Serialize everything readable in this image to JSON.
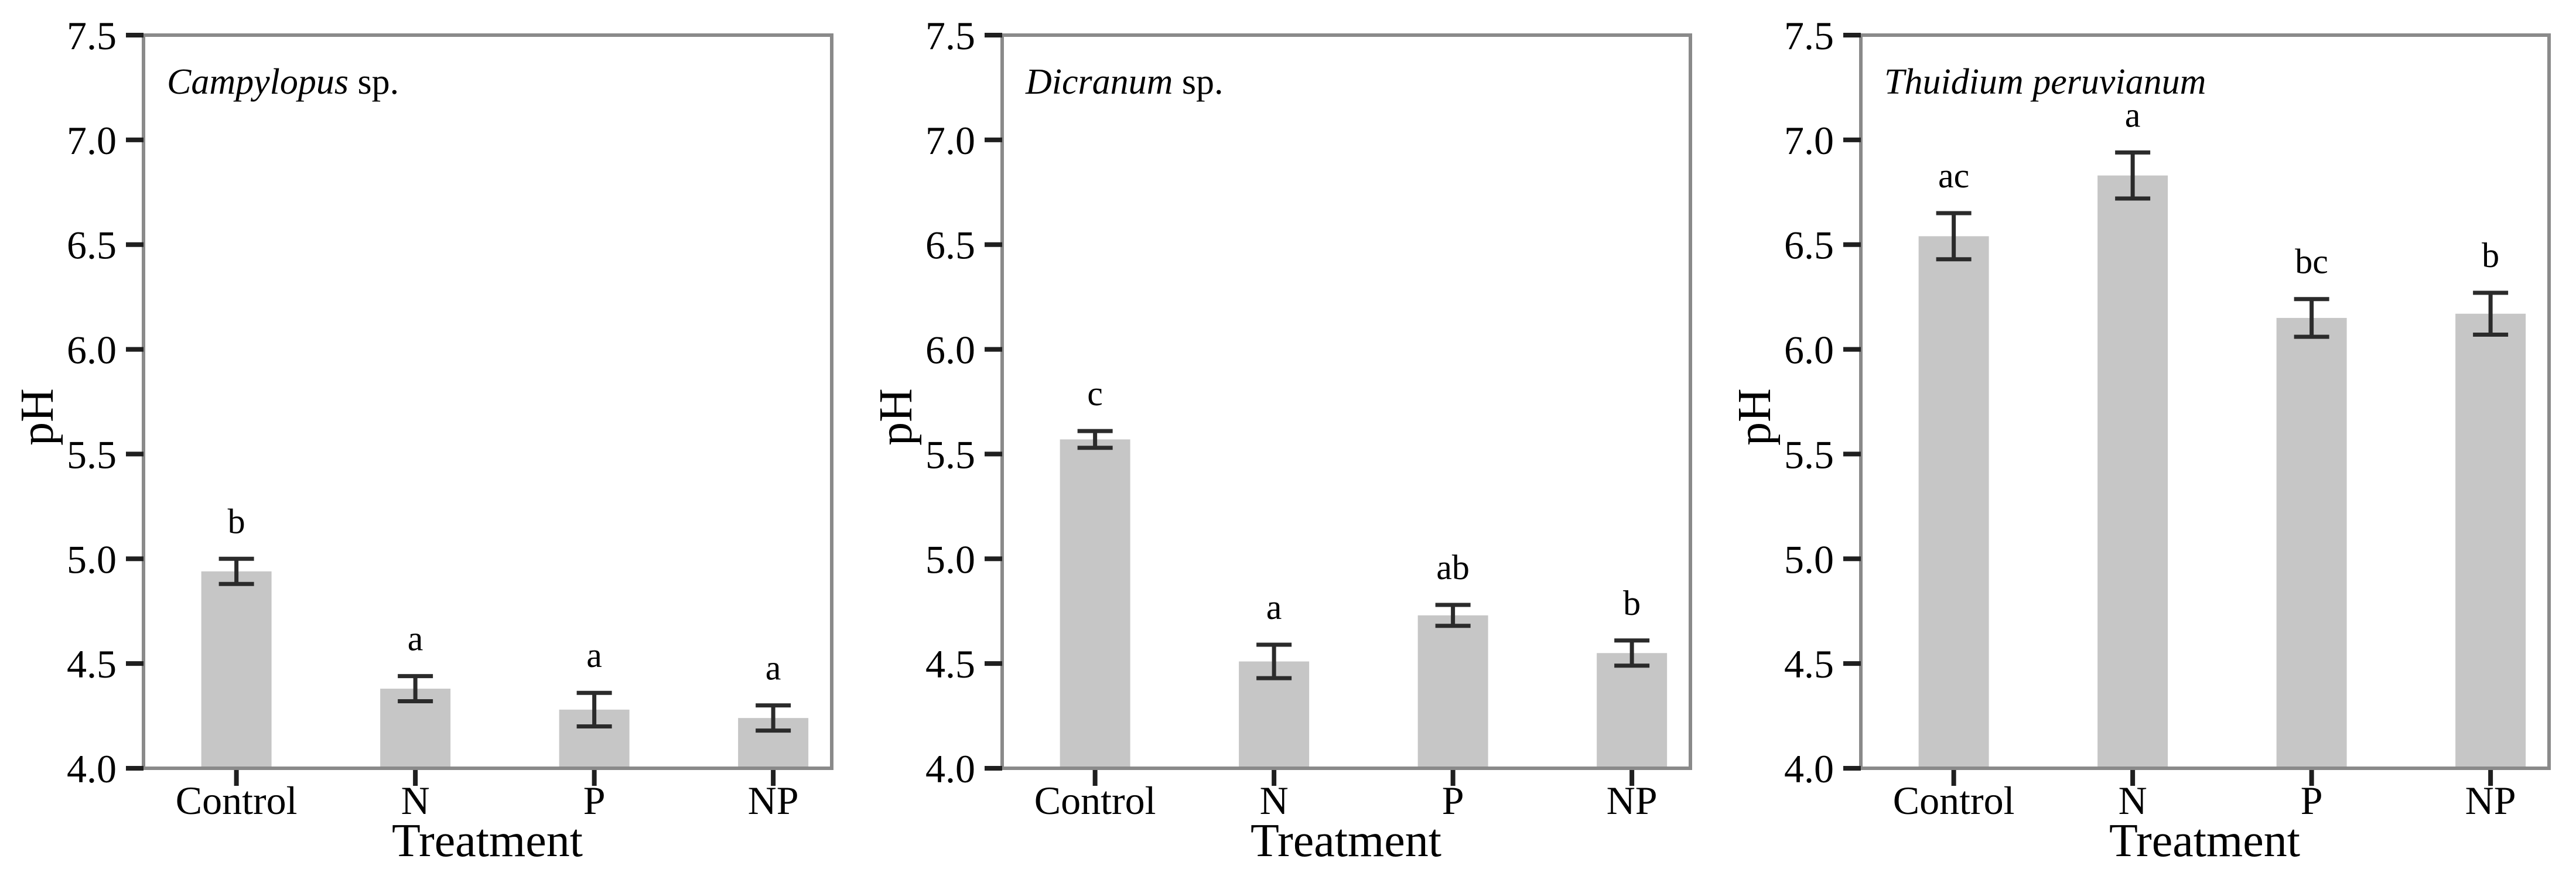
{
  "figure": {
    "background": "#ffffff",
    "description": "Three-panel bar chart of substrate pH under nutrient addition treatments for three moss species, with error bars and significance letters"
  },
  "colors": {
    "bar_fill": "#c6c6c6",
    "axis_line": "#8a8a8a",
    "tick_color": "#1f1f1f",
    "error_bar_color": "#2b2b2b",
    "text_color": "#000000"
  },
  "axes": {
    "y_label": "pH",
    "x_label": "Treatment",
    "y_ticks": [
      "7.5",
      "7.0",
      "6.5",
      "6.0",
      "5.5",
      "5.0",
      "4.5",
      "4.0"
    ],
    "y_range": [
      4.0,
      7.5
    ],
    "categories": [
      "Control",
      "N",
      "P",
      "NP"
    ],
    "grid": false
  },
  "chart_data": [
    {
      "type": "bar",
      "panel": "left",
      "title": "Campylopus sp.",
      "title_parts": [
        {
          "text": "Campylopus",
          "italic": true
        },
        {
          "text": " sp.",
          "italic": false
        }
      ],
      "xlabel": "Treatment",
      "ylabel": "pH",
      "ylim": [
        4.0,
        7.5
      ],
      "categories": [
        "Control",
        "N",
        "P",
        "NP"
      ],
      "values": [
        4.94,
        4.38,
        4.28,
        4.24
      ],
      "errors": [
        0.06,
        0.06,
        0.08,
        0.06
      ],
      "sig_letters": [
        "b",
        "a",
        "a",
        "a"
      ],
      "legend": "none",
      "grid": false
    },
    {
      "type": "bar",
      "panel": "middle",
      "title": "Dicranum sp.",
      "title_parts": [
        {
          "text": "Dicranum",
          "italic": true
        },
        {
          "text": " sp.",
          "italic": false
        }
      ],
      "xlabel": "Treatment",
      "ylabel": "pH",
      "ylim": [
        4.0,
        7.5
      ],
      "categories": [
        "Control",
        "N",
        "P",
        "NP"
      ],
      "values": [
        5.57,
        4.51,
        4.73,
        4.55
      ],
      "errors": [
        0.04,
        0.08,
        0.05,
        0.06
      ],
      "sig_letters": [
        "c",
        "a",
        "ab",
        "b"
      ],
      "legend": "none",
      "grid": false
    },
    {
      "type": "bar",
      "panel": "right",
      "title": "Thuidium peruvianum",
      "title_parts": [
        {
          "text": "Thuidium peruvianum",
          "italic": true
        }
      ],
      "xlabel": "Treatment",
      "ylabel": "pH",
      "ylim": [
        4.0,
        7.5
      ],
      "categories": [
        "Control",
        "N",
        "P",
        "NP"
      ],
      "values": [
        6.54,
        6.83,
        6.15,
        6.17
      ],
      "errors": [
        0.11,
        0.11,
        0.09,
        0.1
      ],
      "sig_letters": [
        "ac",
        "a",
        "bc",
        "b"
      ],
      "legend": "none",
      "grid": false
    }
  ]
}
